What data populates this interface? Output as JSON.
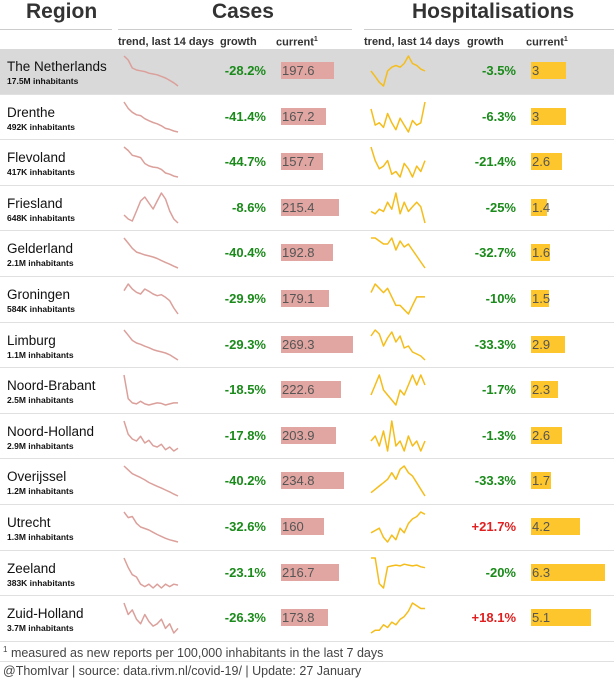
{
  "headers": {
    "region": "Region",
    "cases": "Cases",
    "hosp": "Hospitalisations",
    "trend": "trend, last 14 days",
    "growth": "growth",
    "current": "current",
    "current_sup": "1"
  },
  "colors": {
    "cases_bar": "#e1a6a1",
    "cases_line": "#dba09b",
    "hosp_bar": "#fdc62c",
    "hosp_line": "#f5bd1a",
    "growth_negative": "#1a8a1a",
    "growth_positive": "#e02020",
    "highlight_row": "#d9d9d9"
  },
  "chart_data": {
    "type": "table",
    "columns": [
      "Region",
      "Inhabitants",
      "Cases trend, last 14 days",
      "Cases growth",
      "Cases current",
      "Hospitalisations trend, last 14 days",
      "Hospitalisations growth",
      "Hospitalisations current"
    ],
    "rows": [
      {
        "region": "The Netherlands",
        "pop": "17.5M inhabitants",
        "cases_growth": "-28.2%",
        "cases_current": 197.6,
        "cases_label": "197.6",
        "hosp_growth": "-3.5%",
        "hosp_current": 3,
        "hosp_label": "3",
        "highlight": true,
        "cases_trend": [
          275,
          265,
          245,
          240,
          238,
          236,
          232,
          230,
          228,
          224,
          220,
          214,
          208,
          200
        ],
        "hosp_trend": [
          3.0,
          2.7,
          2.4,
          2.2,
          3.0,
          3.2,
          3.3,
          3.2,
          3.4,
          3.8,
          3.4,
          3.3,
          3.1,
          3.0
        ]
      },
      {
        "region": "Drenthe",
        "pop": "492K inhabitants",
        "cases_growth": "-41.4%",
        "cases_current": 167.2,
        "cases_label": "167.2",
        "hosp_growth": "-6.3%",
        "hosp_current": 3,
        "hosp_label": "3",
        "highlight": false,
        "cases_trend": [
          285,
          260,
          245,
          235,
          232,
          220,
          212,
          205,
          200,
          192,
          182,
          178,
          172,
          168
        ],
        "hosp_trend": [
          3.2,
          2.5,
          2.6,
          2.4,
          3.0,
          2.6,
          2.3,
          2.8,
          2.5,
          2.2,
          2.7,
          2.5,
          2.6,
          3.5
        ]
      },
      {
        "region": "Flevoland",
        "pop": "417K inhabitants",
        "cases_growth": "-44.7%",
        "cases_current": 157.7,
        "cases_label": "157.7",
        "hosp_growth": "-21.4%",
        "hosp_current": 2.6,
        "hosp_label": "2.6",
        "highlight": false,
        "cases_trend": [
          285,
          270,
          250,
          245,
          240,
          215,
          205,
          200,
          198,
          190,
          175,
          170,
          162,
          158
        ],
        "hosp_trend": [
          3.4,
          2.9,
          2.6,
          2.7,
          2.9,
          2.4,
          2.5,
          2.3,
          2.8,
          2.6,
          2.3,
          2.7,
          2.5,
          2.9
        ]
      },
      {
        "region": "Friesland",
        "pop": "648K inhabitants",
        "cases_growth": "-8.6%",
        "cases_current": 215.4,
        "cases_label": "215.4",
        "hosp_growth": "-25%",
        "hosp_current": 1.4,
        "hosp_label": "1.4",
        "highlight": false,
        "cases_trend": [
          235,
          225,
          220,
          245,
          270,
          280,
          265,
          250,
          270,
          290,
          275,
          245,
          225,
          215
        ],
        "hosp_trend": [
          1.6,
          1.5,
          1.7,
          1.6,
          2.0,
          1.7,
          2.4,
          1.5,
          2.0,
          1.6,
          1.8,
          2.0,
          1.8,
          1.1
        ]
      },
      {
        "region": "Gelderland",
        "pop": "2.1M inhabitants",
        "cases_growth": "-40.4%",
        "cases_current": 192.8,
        "cases_label": "192.8",
        "hosp_growth": "-32.7%",
        "hosp_current": 1.6,
        "hosp_label": "1.6",
        "highlight": false,
        "cases_trend": [
          310,
          290,
          270,
          255,
          250,
          244,
          240,
          236,
          230,
          222,
          215,
          208,
          200,
          193
        ],
        "hosp_trend": [
          2.4,
          2.4,
          2.3,
          2.2,
          2.2,
          2.4,
          2.0,
          2.3,
          2.1,
          2.2,
          2.0,
          1.8,
          1.6,
          1.4
        ]
      },
      {
        "region": "Groningen",
        "pop": "584K inhabitants",
        "cases_growth": "-29.9%",
        "cases_current": 179.1,
        "cases_label": "179.1",
        "hosp_growth": "-10%",
        "hosp_current": 1.5,
        "hosp_label": "1.5",
        "highlight": false,
        "cases_trend": [
          250,
          270,
          255,
          245,
          240,
          255,
          248,
          240,
          235,
          238,
          230,
          220,
          198,
          180
        ],
        "hosp_trend": [
          1.7,
          1.9,
          1.8,
          1.7,
          1.8,
          1.6,
          1.4,
          1.4,
          1.3,
          1.2,
          1.4,
          1.6,
          1.6,
          1.6
        ]
      },
      {
        "region": "Limburg",
        "pop": "1.1M inhabitants",
        "cases_growth": "-29.3%",
        "cases_current": 269.3,
        "cases_label": "269.3",
        "hosp_growth": "-33.3%",
        "hosp_current": 2.9,
        "hosp_label": "2.9",
        "highlight": false,
        "cases_trend": [
          380,
          360,
          340,
          330,
          325,
          318,
          312,
          305,
          300,
          296,
          292,
          285,
          275,
          265
        ],
        "hosp_trend": [
          4.1,
          4.4,
          4.2,
          3.6,
          4.0,
          4.3,
          3.8,
          4.1,
          3.5,
          3.6,
          3.3,
          3.2,
          3.1,
          2.9
        ]
      },
      {
        "region": "Noord-Brabant",
        "pop": "2.5M inhabitants",
        "cases_growth": "-18.5%",
        "cases_current": 222.6,
        "cases_label": "222.6",
        "hosp_growth": "-1.7%",
        "hosp_current": 2.3,
        "hosp_label": "2.3",
        "highlight": false,
        "cases_trend": [
          275,
          230,
          222,
          220,
          225,
          220,
          218,
          220,
          222,
          221,
          218,
          220,
          222,
          222
        ],
        "hosp_trend": [
          2.2,
          2.4,
          2.6,
          2.3,
          2.2,
          2.1,
          2.0,
          2.3,
          2.2,
          2.4,
          2.6,
          2.4,
          2.6,
          2.4
        ]
      },
      {
        "region": "Noord-Holland",
        "pop": "2.9M inhabitants",
        "cases_growth": "-17.8%",
        "cases_current": 203.9,
        "cases_label": "203.9",
        "hosp_growth": "-1.3%",
        "hosp_current": 2.6,
        "hosp_label": "2.6",
        "highlight": false,
        "cases_trend": [
          245,
          225,
          218,
          215,
          222,
          212,
          216,
          208,
          206,
          210,
          202,
          206,
          200,
          204
        ],
        "hosp_trend": [
          2.6,
          2.7,
          2.5,
          2.8,
          2.4,
          3.0,
          2.5,
          2.6,
          2.4,
          2.7,
          2.5,
          2.6,
          2.4,
          2.6
        ]
      },
      {
        "region": "Overijssel",
        "pop": "1.2M inhabitants",
        "cases_growth": "-40.2%",
        "cases_current": 234.8,
        "cases_label": "234.8",
        "hosp_growth": "-33.3%",
        "hosp_current": 1.7,
        "hosp_label": "1.7",
        "highlight": false,
        "cases_trend": [
          390,
          370,
          350,
          340,
          330,
          318,
          305,
          295,
          285,
          276,
          266,
          256,
          245,
          235
        ],
        "hosp_trend": [
          1.8,
          1.9,
          2.0,
          2.1,
          2.2,
          2.4,
          2.2,
          2.5,
          2.6,
          2.4,
          2.3,
          2.1,
          1.9,
          1.7
        ]
      },
      {
        "region": "Utrecht",
        "pop": "1.3M inhabitants",
        "cases_growth": "-32.6%",
        "cases_current": 160,
        "cases_label": "160",
        "hosp_growth": "+21.7%",
        "hosp_current": 4.2,
        "hosp_label": "4.2",
        "highlight": false,
        "cases_trend": [
          240,
          225,
          228,
          210,
          200,
          196,
          192,
          186,
          180,
          175,
          170,
          166,
          163,
          160
        ],
        "hosp_trend": [
          3.4,
          3.5,
          3.6,
          3.2,
          3.0,
          3.3,
          3.1,
          3.6,
          3.4,
          3.8,
          4.0,
          4.1,
          4.3,
          4.2
        ]
      },
      {
        "region": "Zeeland",
        "pop": "383K inhabitants",
        "cases_growth": "-23.1%",
        "cases_current": 216.7,
        "cases_label": "216.7",
        "hosp_growth": "-20%",
        "hosp_current": 6.3,
        "hosp_label": "6.3",
        "highlight": false,
        "cases_trend": [
          275,
          255,
          240,
          235,
          220,
          215,
          220,
          212,
          220,
          212,
          220,
          215,
          220,
          218
        ],
        "hosp_trend": [
          7.4,
          7.4,
          4.5,
          4.0,
          6.4,
          6.5,
          6.6,
          6.5,
          6.7,
          6.6,
          6.5,
          6.6,
          6.4,
          6.3
        ]
      },
      {
        "region": "Zuid-Holland",
        "pop": "3.7M inhabitants",
        "cases_growth": "-26.3%",
        "cases_current": 173.8,
        "cases_label": "173.8",
        "hosp_growth": "+18.1%",
        "hosp_current": 5.1,
        "hosp_label": "5.1",
        "highlight": false,
        "cases_trend": [
          185,
          180,
          182,
          178,
          176,
          180,
          177,
          175,
          176,
          178,
          174,
          176,
          172,
          174
        ],
        "hosp_trend": [
          4.2,
          4.3,
          4.3,
          4.5,
          4.4,
          4.6,
          4.5,
          4.7,
          4.8,
          5.0,
          5.3,
          5.2,
          5.1,
          5.1
        ]
      }
    ]
  },
  "footnote": {
    "sup": "1",
    "text": "measured as new reports per 100,000 inhabitants in the last 7 days"
  },
  "credit": "@ThomIvar | source: data.rivm.nl/covid-19/ | Update: 27 January"
}
